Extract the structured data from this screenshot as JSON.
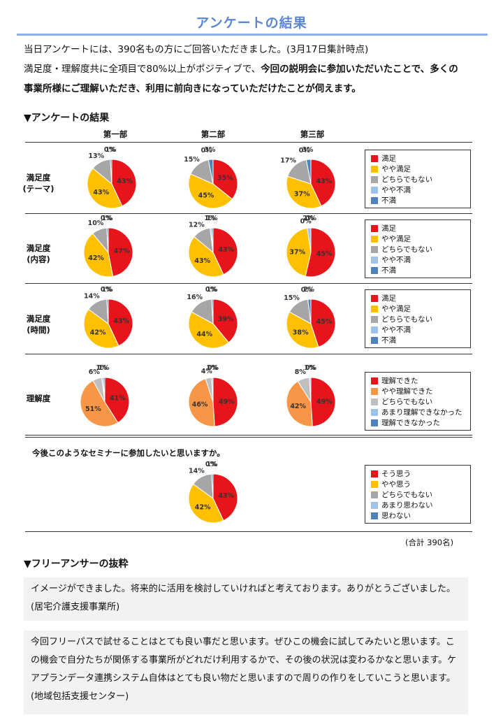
{
  "page_title": "アンケートの結果",
  "intro": {
    "line1": "当日アンケートには、390名もの方にご回答いただきました。(3月17日集計時点)",
    "line2_plain": "満足度・理解度共に全項目で80%以上がポジティブで、",
    "line2_bold": "今回の説明会に参加いただいたことで、多くの",
    "line3_bold": "事業所様にご理解いただき、利用に前向きになっていただけたことが伺えます。"
  },
  "survey_heading": "▼アンケートの結果",
  "columns": [
    "第一部",
    "第二部",
    "第三部"
  ],
  "colors": {
    "red": "#e8141c",
    "yellow": "#ffc000",
    "gray": "#a6a6a6",
    "lightblue": "#9dc3e6",
    "blue": "#4f81bd",
    "orange": "#f79646",
    "lightgray": "#bfbfbf"
  },
  "legends": {
    "satisfaction": [
      "満足",
      "やや満足",
      "どちらでもない",
      "やや不満",
      "不満"
    ],
    "understanding": [
      "理解できた",
      "やや理解できた",
      "どちらでもない",
      "あまり理解できなかった",
      "理解できなかった"
    ],
    "future": [
      "そう思う",
      "やや思う",
      "どちらでもない",
      "あまり思わない",
      "思わない"
    ]
  },
  "chart_data": [
    {
      "type": "pie",
      "title": "満足度(テーマ)",
      "categories": [
        "満足",
        "やや満足",
        "どちらでもない",
        "やや不満",
        "不満"
      ],
      "series": [
        {
          "name": "第一部",
          "values": [
            43,
            43,
            13,
            0,
            1
          ]
        },
        {
          "name": "第二部",
          "values": [
            35,
            45,
            15,
            0,
            3
          ]
        },
        {
          "name": "第三部",
          "values": [
            43,
            37,
            17,
            0,
            3
          ]
        }
      ]
    },
    {
      "type": "pie",
      "title": "満足度(内容)",
      "categories": [
        "満足",
        "やや満足",
        "どちらでもない",
        "やや不満",
        "不満"
      ],
      "series": [
        {
          "name": "第一部",
          "values": [
            47,
            42,
            10,
            0,
            1
          ]
        },
        {
          "name": "第二部",
          "values": [
            43,
            43,
            12,
            1,
            1
          ]
        },
        {
          "name": "第三部",
          "values": [
            45,
            37,
            0,
            2,
            0
          ]
        }
      ]
    },
    {
      "type": "pie",
      "title": "満足度(時間)",
      "categories": [
        "満足",
        "やや満足",
        "どちらでもない",
        "やや不満",
        "不満"
      ],
      "series": [
        {
          "name": "第一部",
          "values": [
            43,
            42,
            14,
            0,
            1
          ]
        },
        {
          "name": "第二部",
          "values": [
            39,
            44,
            16,
            0,
            1
          ]
        },
        {
          "name": "第三部",
          "values": [
            45,
            38,
            15,
            0,
            2
          ]
        }
      ]
    },
    {
      "type": "pie",
      "title": "理解度",
      "categories": [
        "理解できた",
        "やや理解できた",
        "どちらでもない",
        "あまり理解できなかった",
        "理解できなかった"
      ],
      "series": [
        {
          "name": "第一部",
          "values": [
            41,
            51,
            6,
            1,
            1
          ]
        },
        {
          "name": "第二部",
          "values": [
            49,
            46,
            4,
            1,
            0
          ]
        },
        {
          "name": "第三部",
          "values": [
            49,
            42,
            8,
            1,
            0
          ]
        }
      ]
    },
    {
      "type": "pie",
      "title": "今後このようなセミナーに参加したいと思いますか。",
      "categories": [
        "そう思う",
        "やや思う",
        "どちらでもない",
        "あまり思わない",
        "思わない"
      ],
      "series": [
        {
          "name": "全体",
          "values": [
            43,
            42,
            14,
            0,
            1
          ]
        }
      ]
    }
  ],
  "rows": {
    "r1_line1": "満足度",
    "r1_line2": "(テーマ)",
    "r2_line1": "満足度",
    "r2_line2": "(内容)",
    "r3_line1": "満足度",
    "r3_line2": "(時間)",
    "r4_line1": "理解度"
  },
  "future_question": "今後このようなセミナーに参加したいと思いますか。",
  "total": "(合計 390名)",
  "free_heading": "▼フリーアンサーの抜粋",
  "quotes": [
    "イメージができました。将来的に活用を検討していければと考えております。ありがとうございました。(居宅介護支援事業所)",
    "今回フリーパスで試せることはとても良い事だと思います。ぜひこの機会に試してみたいと思います。この機会で自分たちが関係する事業所がどれだけ利用するかで、その後の状況は変わるかなと思います。ケアプランデータ連携システム自体はとても良い物だと思いますので周りの作りをしていこうと思います。(地域包括支援センター)"
  ]
}
